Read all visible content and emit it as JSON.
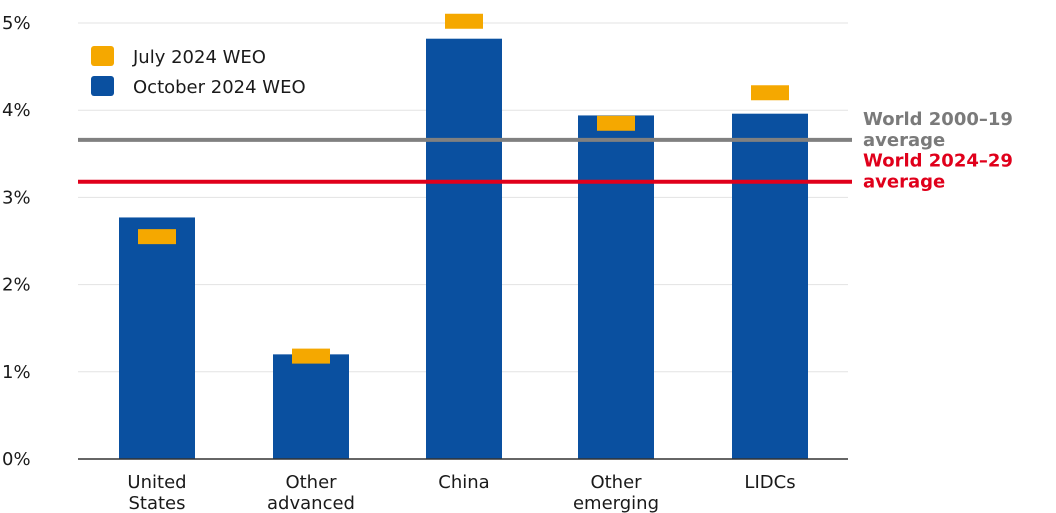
{
  "chart_data": {
    "type": "bar",
    "categories": [
      [
        "United",
        "States"
      ],
      [
        "Other",
        "advanced"
      ],
      [
        "China"
      ],
      [
        "Other",
        "emerging"
      ],
      [
        "LIDCs"
      ]
    ],
    "series": [
      {
        "name": "October 2024 WEO",
        "values": [
          2.77,
          1.2,
          4.82,
          3.94,
          3.96
        ],
        "color": "#0a50a0",
        "mark": "bar"
      },
      {
        "name": "July 2024 WEO",
        "values": [
          2.55,
          1.18,
          5.02,
          3.85,
          4.2
        ],
        "color": "#f5a800",
        "mark": "dash"
      }
    ],
    "reference_lines": [
      {
        "value": 3.66,
        "label": [
          "World 2000–19",
          "average"
        ],
        "color": "#808080",
        "text_color": "#7a7a7a"
      },
      {
        "value": 3.18,
        "label": [
          "World 2024–29",
          "average"
        ],
        "color": "#e0001b",
        "text_color": "#e0001b"
      }
    ],
    "yticks": [
      "0%",
      "1%",
      "2%",
      "3%",
      "4%",
      "5%"
    ],
    "ylim": [
      0,
      5
    ],
    "grid": true,
    "legend": "top-left"
  }
}
